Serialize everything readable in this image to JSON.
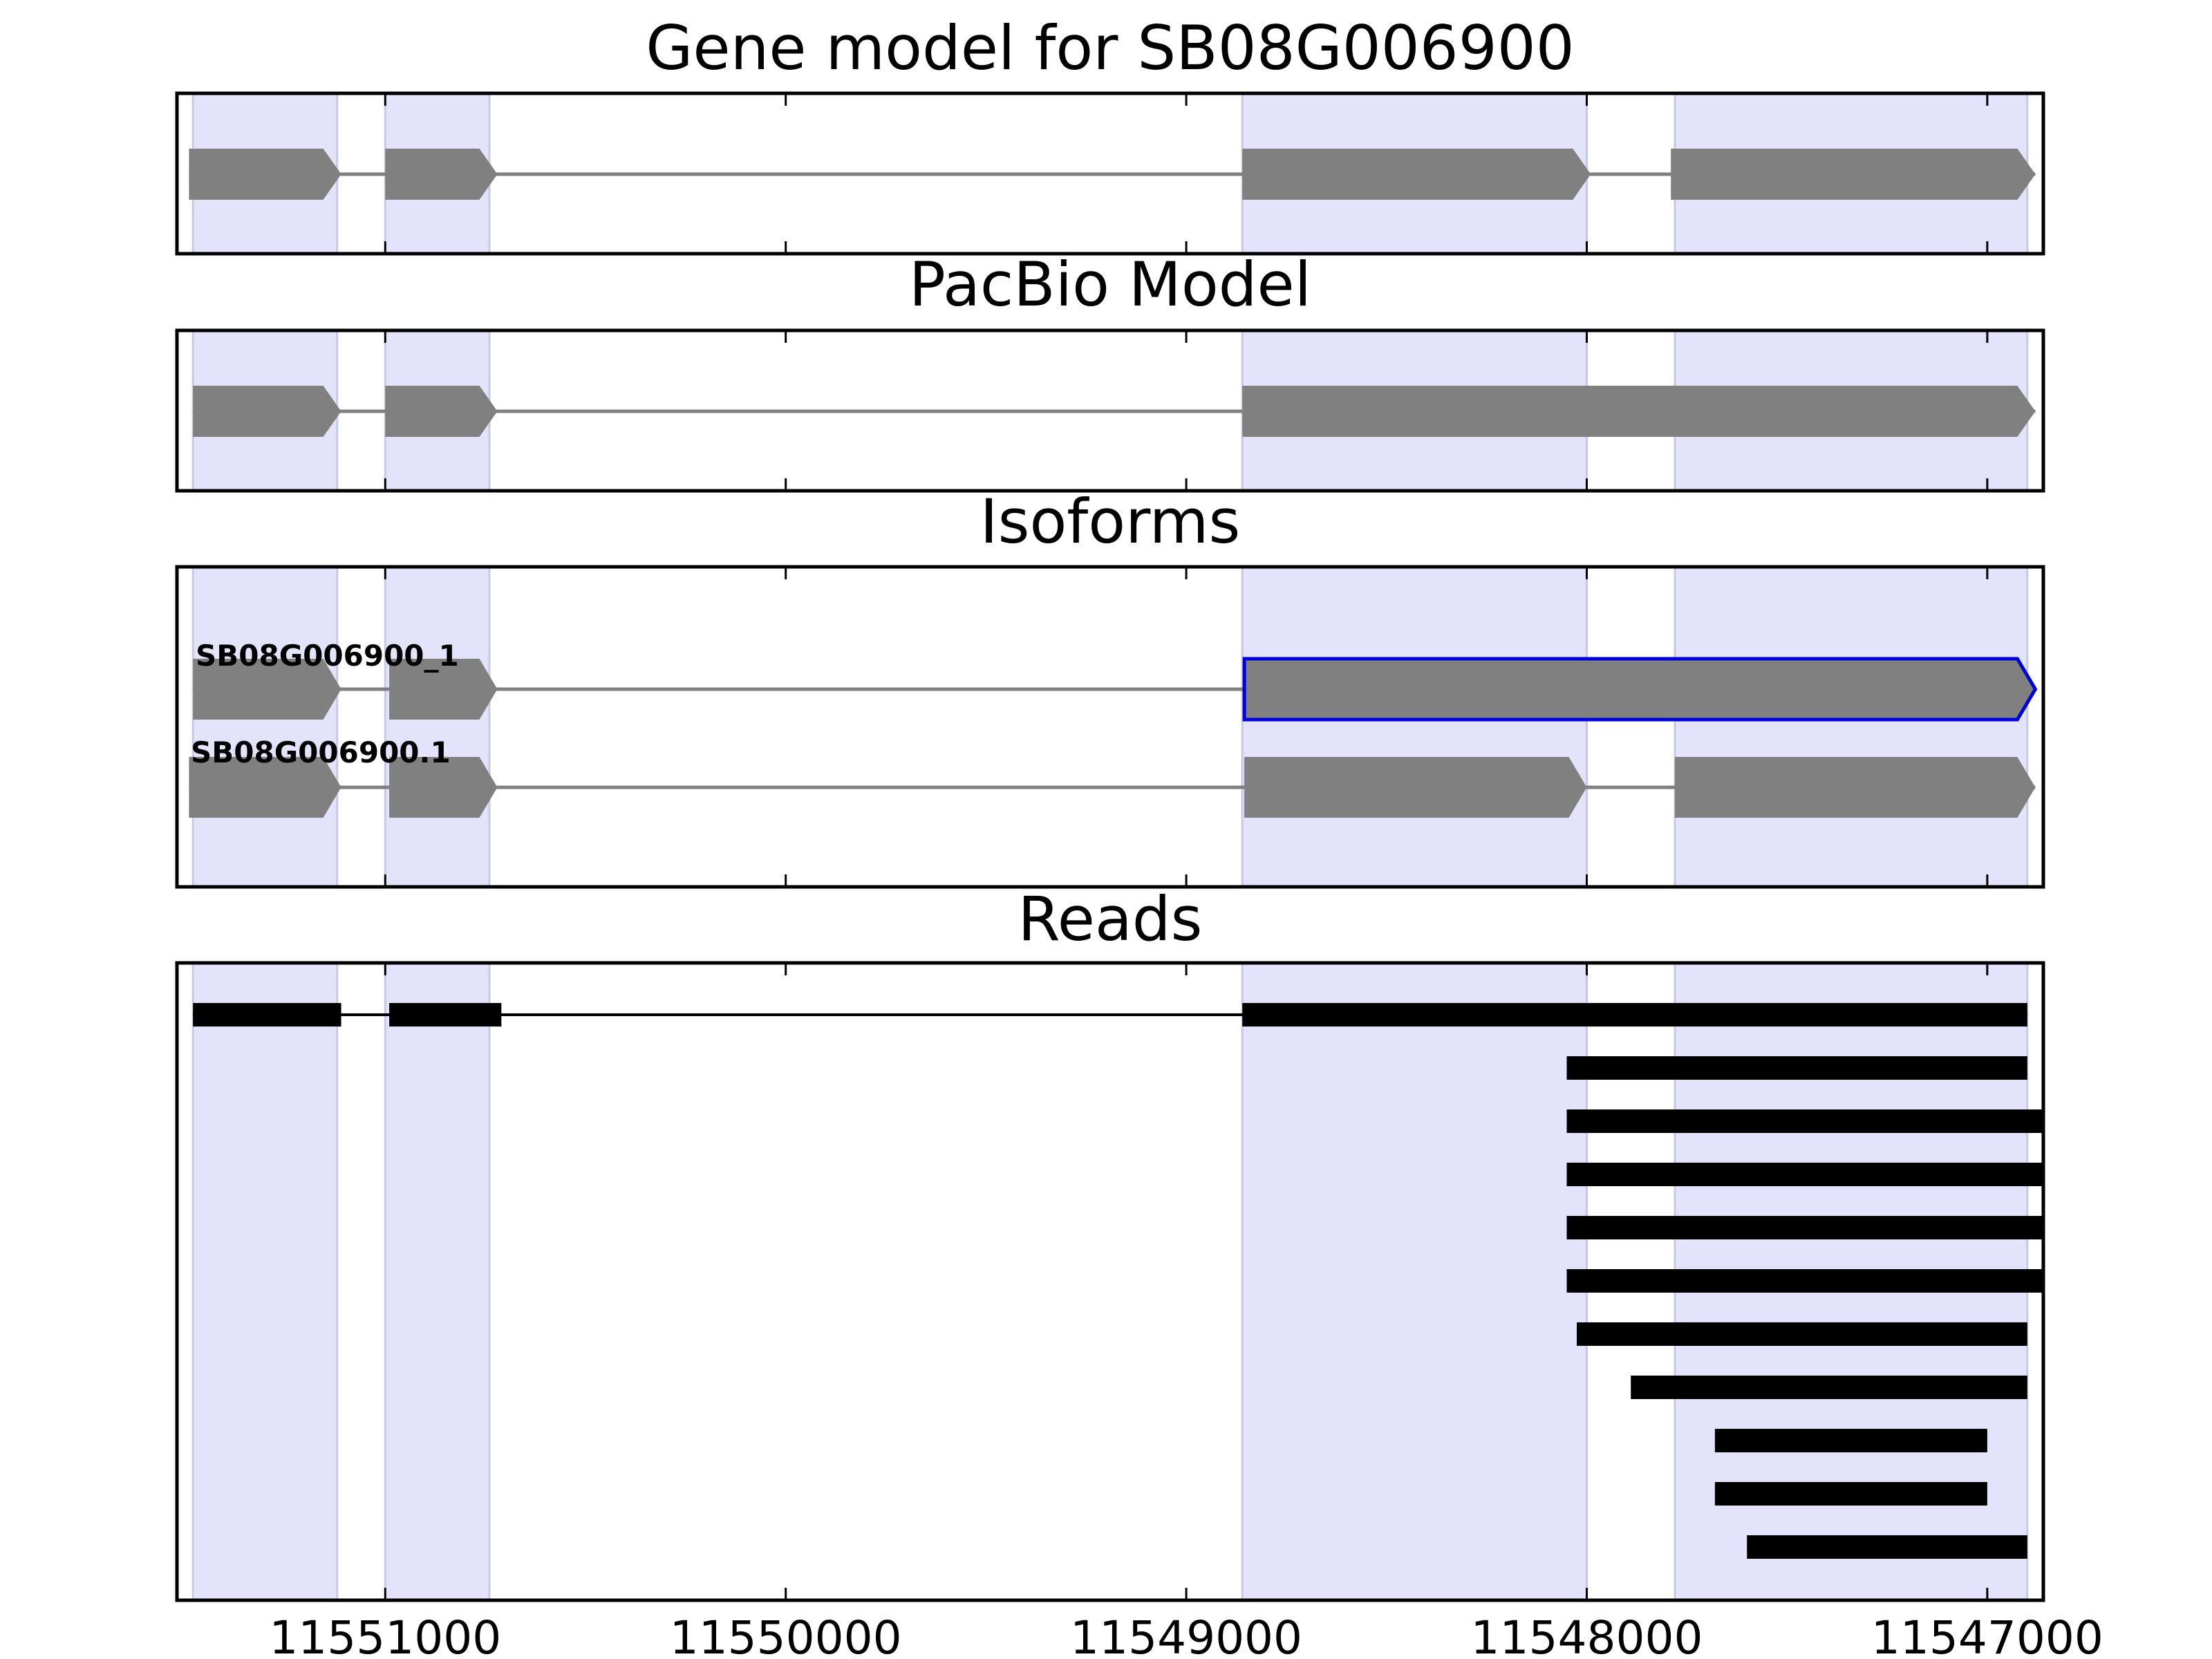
{
  "chart_data": {
    "type": "gene-model-track",
    "xaxis": {
      "reversed": true,
      "range": [
        11551520,
        11546860
      ],
      "tick_values": [
        11551000,
        11550000,
        11549000,
        11548000,
        11547000
      ],
      "tick_labels": [
        "11551000",
        "11550000",
        "11549000",
        "11548000",
        "11547000"
      ]
    },
    "exon_highlights": [
      [
        11551480,
        11551120
      ],
      [
        11551000,
        11550740
      ],
      [
        11548860,
        11548000
      ],
      [
        11547780,
        11546900
      ]
    ],
    "colors": {
      "highlight": "#e3e3fc",
      "highlight_edge": "#c8c8e8",
      "feature": "#808080",
      "intron": "#808080",
      "selected_outline": "#0000dd",
      "read": "#000000",
      "axes": "#000000"
    },
    "panels": [
      {
        "title": "Gene model for SB08G006900",
        "tracks": [
          {
            "exons": [
              [
                11551490,
                11551110
              ],
              [
                11551000,
                11550720
              ],
              [
                11548860,
                11547990
              ],
              [
                11547790,
                11546880
              ]
            ]
          }
        ]
      },
      {
        "title": "PacBio Model",
        "tracks": [
          {
            "exons": [
              [
                11551480,
                11551110
              ],
              [
                11551000,
                11550720
              ],
              [
                11548860,
                11546880
              ]
            ]
          }
        ]
      },
      {
        "title": "Isoforms",
        "tracks": [
          {
            "label": "SB08G006900_1",
            "exons": [
              [
                11551480,
                11551110
              ],
              [
                11550990,
                11550720
              ],
              [
                11548855,
                11546880
              ]
            ],
            "selected": true
          },
          {
            "label": "SB08G006900.1",
            "exons": [
              [
                11551490,
                11551110
              ],
              [
                11550990,
                11550720
              ],
              [
                11548855,
                11548000
              ],
              [
                11547780,
                11546880
              ]
            ]
          }
        ]
      },
      {
        "title": "Reads",
        "tracks": [
          {
            "blocks": [
              [
                11551480,
                11551110
              ],
              [
                11550990,
                11550710
              ],
              [
                11548860,
                11546900
              ]
            ]
          },
          {
            "blocks": [
              [
                11548050,
                11546900
              ]
            ]
          },
          {
            "blocks": [
              [
                11548050,
                11546860
              ]
            ]
          },
          {
            "blocks": [
              [
                11548050,
                11546860
              ]
            ]
          },
          {
            "blocks": [
              [
                11548050,
                11546860
              ]
            ]
          },
          {
            "blocks": [
              [
                11548050,
                11546860
              ]
            ]
          },
          {
            "blocks": [
              [
                11548025,
                11546900
              ]
            ]
          },
          {
            "blocks": [
              [
                11547890,
                11546900
              ]
            ]
          },
          {
            "blocks": [
              [
                11547680,
                11547000
              ]
            ]
          },
          {
            "blocks": [
              [
                11547680,
                11547000
              ]
            ]
          },
          {
            "blocks": [
              [
                11547600,
                11546900
              ]
            ]
          }
        ]
      }
    ]
  }
}
